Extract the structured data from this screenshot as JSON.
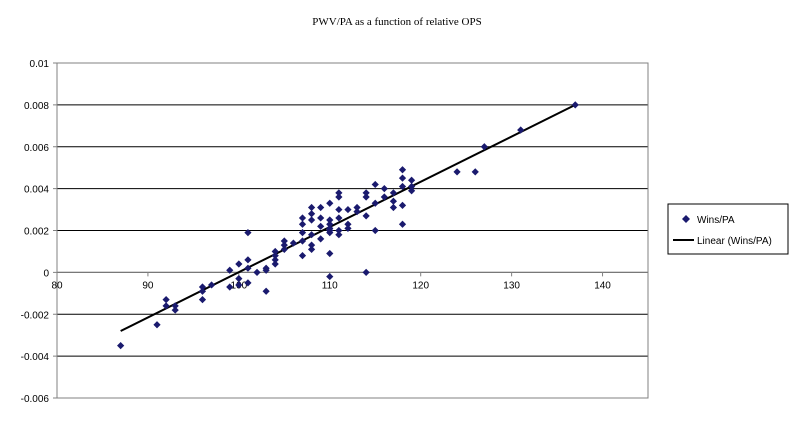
{
  "chart_data": {
    "type": "scatter",
    "title": "PWV/PA as a function of relative OPS",
    "xlabel": "",
    "ylabel": "",
    "xlim": [
      80,
      145
    ],
    "ylim": [
      -0.006,
      0.01
    ],
    "xticks": [
      80,
      90,
      100,
      110,
      120,
      130,
      140
    ],
    "xtick_labels": [
      "80",
      "90",
      "100",
      "110",
      "120",
      "130",
      "140"
    ],
    "yticks": [
      -0.006,
      -0.004,
      -0.002,
      0,
      0.002,
      0.004,
      0.006,
      0.008,
      0.01
    ],
    "ytick_labels": [
      "-0.006",
      "-0.004",
      "-0.002",
      "0",
      "0.002",
      "0.004",
      "0.006",
      "0.008",
      "0.01"
    ],
    "grid": "horizontal",
    "legend_position": "right",
    "series": [
      {
        "name": "Wins/PA",
        "kind": "scatter",
        "marker": "diamond",
        "color": "#1a1a6e",
        "points": [
          [
            87,
            -0.0035
          ],
          [
            91,
            -0.0025
          ],
          [
            92,
            -0.0013
          ],
          [
            92,
            -0.0016
          ],
          [
            93,
            -0.0016
          ],
          [
            93,
            -0.0018
          ],
          [
            96,
            -0.0013
          ],
          [
            96,
            -0.0007
          ],
          [
            96,
            -0.0009
          ],
          [
            97,
            -0.0006
          ],
          [
            99,
            -0.0007
          ],
          [
            99,
            0.0001
          ],
          [
            100,
            -0.0003
          ],
          [
            100,
            0.0004
          ],
          [
            100,
            -0.0006
          ],
          [
            101,
            0.0019
          ],
          [
            101,
            0.0006
          ],
          [
            101,
            0.0002
          ],
          [
            101,
            -0.0005
          ],
          [
            102,
            0.0
          ],
          [
            103,
            -0.0009
          ],
          [
            103,
            0.0002
          ],
          [
            103,
            0.0001
          ],
          [
            104,
            0.0006
          ],
          [
            104,
            0.0008
          ],
          [
            104,
            0.0004
          ],
          [
            104,
            0.001
          ],
          [
            105,
            0.0013
          ],
          [
            105,
            0.0015
          ],
          [
            105,
            0.0011
          ],
          [
            106,
            0.0014
          ],
          [
            107,
            0.0008
          ],
          [
            107,
            0.0019
          ],
          [
            107,
            0.0015
          ],
          [
            107,
            0.0023
          ],
          [
            107,
            0.0026
          ],
          [
            108,
            0.0011
          ],
          [
            108,
            0.0013
          ],
          [
            108,
            0.0018
          ],
          [
            108,
            0.0025
          ],
          [
            108,
            0.0028
          ],
          [
            108,
            0.0031
          ],
          [
            109,
            0.0016
          ],
          [
            109,
            0.0022
          ],
          [
            109,
            0.0026
          ],
          [
            109,
            0.0031
          ],
          [
            110,
            0.0009
          ],
          [
            110,
            -0.0002
          ],
          [
            110,
            0.0019
          ],
          [
            110,
            0.0023
          ],
          [
            110,
            0.0025
          ],
          [
            110,
            0.002
          ],
          [
            110,
            0.0033
          ],
          [
            110,
            0.0021
          ],
          [
            111,
            0.0018
          ],
          [
            111,
            0.0026
          ],
          [
            111,
            0.003
          ],
          [
            111,
            0.0036
          ],
          [
            111,
            0.0038
          ],
          [
            111,
            0.002
          ],
          [
            112,
            0.0023
          ],
          [
            112,
            0.0021
          ],
          [
            112,
            0.003
          ],
          [
            113,
            0.0029
          ],
          [
            113,
            0.0031
          ],
          [
            114,
            0.0036
          ],
          [
            114,
            0.0038
          ],
          [
            114,
            0.0027
          ],
          [
            114,
            0.0
          ],
          [
            115,
            0.002
          ],
          [
            115,
            0.0033
          ],
          [
            115,
            0.0042
          ],
          [
            116,
            0.0036
          ],
          [
            116,
            0.004
          ],
          [
            117,
            0.0031
          ],
          [
            117,
            0.0038
          ],
          [
            117,
            0.0034
          ],
          [
            118,
            0.0049
          ],
          [
            118,
            0.0045
          ],
          [
            118,
            0.0041
          ],
          [
            118,
            0.0023
          ],
          [
            118,
            0.0032
          ],
          [
            119,
            0.0044
          ],
          [
            119,
            0.0039
          ],
          [
            119,
            0.0041
          ],
          [
            124,
            0.0048
          ],
          [
            126,
            0.0048
          ],
          [
            127,
            0.006
          ],
          [
            131,
            0.0068
          ],
          [
            137,
            0.008
          ]
        ]
      },
      {
        "name": "Linear (Wins/PA)",
        "kind": "line",
        "color": "#000000",
        "x": [
          87,
          137
        ],
        "y": [
          -0.0028,
          0.008
        ]
      }
    ]
  }
}
